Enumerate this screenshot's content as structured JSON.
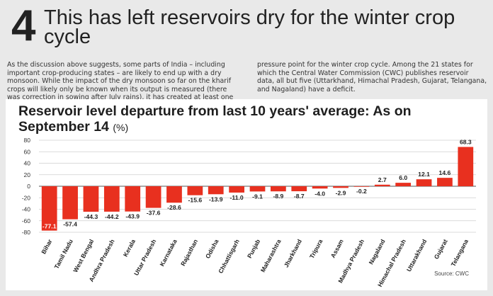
{
  "headline": {
    "number": "4",
    "text": "This has left reservoirs dry for the winter crop cycle"
  },
  "intro": {
    "left": "As the discussion above suggests, some parts of India – including important crop-producing states – are likely to end up with a dry monsoon. While the impact of the dry monsoon so far on the kharif crops will likely only be known when its output is measured (there was correction in sowing after July rains), it has created at least one",
    "right": "pressure point for the winter crop cycle. Among the 21 states for which the Central Water Commission (CWC) publishes reservoir data, all but five (Uttarkhand, Himachal Pradesh, Gujarat, Telangana, and Nagaland) have a deficit."
  },
  "source": "Source: CWC",
  "colors": {
    "bar": "#e8301f",
    "grid": "#cfcfcf",
    "axis": "#555555"
  },
  "chart_data": {
    "type": "bar",
    "title": "Reservoir level departure from last 10 years' average: As on September 14",
    "title_unit": "(%)",
    "categories": [
      "Bihar",
      "Tamil Nadu",
      "West Bengal",
      "Andhra Pradesh",
      "Kerala",
      "Uttar Pradesh",
      "Karnataka",
      "Rajasthan",
      "Odisha",
      "Chhattisgarh",
      "Punjab",
      "Maharashtra",
      "Jharkhand",
      "Tripura",
      "Assam",
      "Madhya Pradesh",
      "Nagaland",
      "Himachal Pradesh",
      "Uttarakhand",
      "Gujarat",
      "Telangana"
    ],
    "values": [
      -77.1,
      -57.4,
      -44.3,
      -44.2,
      -43.9,
      -37.6,
      -28.6,
      -15.6,
      -13.9,
      -11.0,
      -9.1,
      -8.9,
      -8.7,
      -4.0,
      -2.9,
      -0.2,
      2.7,
      6.0,
      12.1,
      14.6,
      68.3
    ],
    "labels": [
      "-77.1",
      "-57.4",
      "-44.3",
      "-44.2",
      "-43.9",
      "-37.6",
      "-28.6",
      "-15.6",
      "-13.9",
      "-11.0",
      "-9.1",
      "-8.9",
      "-8.7",
      "-4.0",
      "-2.9",
      "-0.2",
      "2.7",
      "6.0",
      "12.1",
      "14.6",
      "68.3"
    ],
    "ylim": [
      -80,
      80
    ],
    "yticks": [
      "80",
      "60",
      "40",
      "20",
      "0",
      "-20",
      "-40",
      "-60",
      "-80"
    ],
    "grid": true,
    "xlabel": "",
    "ylabel": ""
  }
}
